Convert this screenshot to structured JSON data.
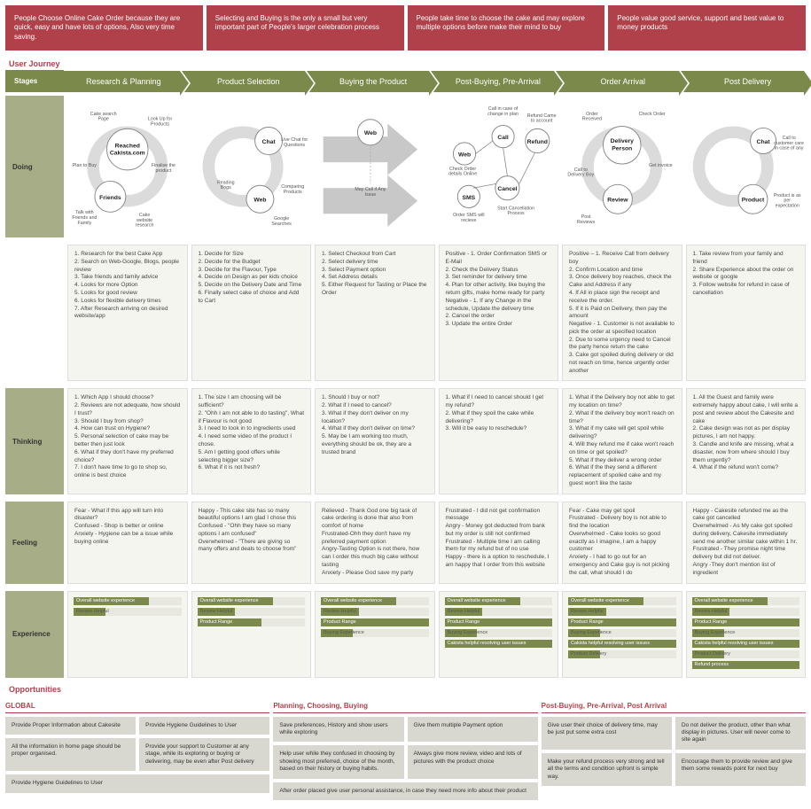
{
  "colors": {
    "banner_bg": "#b0414a",
    "stage_bg": "#7b8a4a",
    "label_bg": "#a7ad87",
    "cell_bg": "#f5f5f0",
    "opp_card_bg": "#d8d8d0"
  },
  "banners": [
    "People Choose Online Cake Order because they are quick, easy and have lots of options, Also very time saving.",
    "Selecting and Buying is the only a small but very important part of People's larger celebration process",
    "People take time to choose the cake and may explore multiple options before make their mind to buy",
    "People value good service, support and best value to money products"
  ],
  "journey_title": "User Journey",
  "stages_label": "Stages",
  "stages": [
    "Research & Planning",
    "Product Selection",
    "Buying the Product",
    "Post-Buying, Pre-Arrival",
    "Order Arrival",
    "Post Delivery"
  ],
  "rows": {
    "doing": {
      "label": "Doing",
      "col1": {
        "center": "Reached Cakista.com",
        "nodes": [
          "Friends"
        ],
        "labels": [
          "Cake search Page",
          "Look Up for Products",
          "Plan to Buy",
          "Finalise the product",
          "Talk with Friends and Family",
          "Cake website research"
        ]
      },
      "col2": {
        "nodes": [
          "Chat",
          "Web"
        ],
        "labels": [
          "Live Chat for Questions",
          "Reading Bogs",
          "Comparing Products",
          "Google Searches"
        ]
      },
      "col3": {
        "nodes": [
          "Web"
        ],
        "labels": [
          "May Call if Any Issue"
        ]
      },
      "col4": {
        "nodes": [
          "Web",
          "SMS",
          "Call",
          "Cancel",
          "Refund"
        ],
        "labels": [
          "Call in case of change in plan",
          "Refund Came to account",
          "Check Order details Online",
          "Order SMS will recieve",
          "Start Cancellation Process"
        ]
      },
      "col5": {
        "center": "Delivery Person",
        "nodes": [
          "Review"
        ],
        "labels": [
          "Order Received",
          "Check Order",
          "Call to Delivery Boy",
          "Get invoice",
          "Post Reviews"
        ]
      },
      "col6": {
        "nodes": [
          "Chat",
          "Product"
        ],
        "labels": [
          "Call to customer care in case of any",
          "Product is as per expectation"
        ]
      }
    },
    "doing_list": [
      "1. Research for the best Cake App\n2. Search on Web-Google, Blogs, people review\n3. Take friends and family advice\n4. Looks for more Option\n5. Looks for good review\n6. Looks for flexible delivery times\n7. After Research arriving on desired website/app",
      "1. Decide for Size\n2. Decide for the Budget\n3. Decide for the Flavour, Type\n4. Decide on Design as per kids choice\n5. Decide on the Delivery Date and Time\n6. Finally select cake of choice and Add to Cart",
      "1. Select Checkout from Cart\n2. Select delivery time\n3. Select Payment option\n4. Set Address details\n5. Either Request for Tasting or Place the Order",
      "Positive - 1. Order Confirmation SMS or E-Mail\n2. Check the Delivery Status\n3. Set reminder for delivery time\n4. Plan for other activity, like buying the return gifts, make home ready for party\nNegative - 1. If any Change in the schedule, Update the delivery time\n2. Cancel the order\n3. Update the entire Order",
      "Positive – 1. Receive Call from delivery boy\n2. Confirm Location and time\n3. Once delivery boy reaches, check the Cake and Address if any\n4. If All in place sign the receipt and receive the order.\n5. If it is Paid on Delivery, then pay the amount\nNegative - 1. Customer is not available to pick the order at specified location\n2. Due to some urgency need to Cancel the party hence return the cake\n3. Cake got spoiled during delivery or did not reach on time, hence urgently order another",
      "1. Take review from your family and friend\n2. Share Experience about the order on website or google\n3. Follow website for refund in case of cancellation"
    ],
    "thinking": {
      "label": "Thinking",
      "cells": [
        "1. Which App I should choose?\n2. Reviews are not adequate, how should I trust?\n3. Should I buy from shop?\n4. How can  trust on Hygiene?\n5. Personal selection of cake may be better then just look\n6. What if they don't have my preferred choice?\n7. I don't have time to go to shop so, online is best choice",
        "1. The size I am choosing will be sufficient?\n2. \"Ohh I am not able to do tasting\", What if Flavour is not good\n3. I need to look in to ingredients used\n4. I need some video of the product I chose.\n5. Am I getting good offers while selecting bigger size?\n6. What if it is not fresh?",
        "1. Should I buy or not?\n2. What if I need to cancel?\n3. What if they don't deliver on my location?\n4. What if they don't deliver on time?\n5. May be I am working too much, everything should be ok, they are a trusted brand",
        "1. What if I need to cancel should I get my refund?\n2. What if they spoil the cake while delivering?\n3. Will it be easy to reschedule?",
        "1. What if the Delivery boy not able to get my location on time?\n2. What if the delivery boy won't reach on time?\n3. What if my cake will get spoil while delivering?\n4. Will they refund me if cake won't reach on time or get spoiled?\n5. What if they deliver a wrong order\n6. What if the they send a different replacement of spoiled cake and my guest won't like the taste",
        "1. All the Guest and family were extremely happy about cake, I will write a post and review about the Cakesite and cake\n2. Cake design was not as per display pictures, I am not happy.\n3. Candle and knife are missing, what a disaster, now from where should I buy them urgently?\n4. What if the refund won't come?"
      ]
    },
    "feeling": {
      "label": "Feeling",
      "cells": [
        "Fear - What if this app will turn into disaster?\nConfused - Shop is better or online\nAnxiety - Hygiene can be a issue while buying online",
        "Happy - This cake site has so many beautiful options I am glad I chose this\nConfused - \"Ohh they have so many options I am confused\"\nOverwhelmed - \"There are giving so many offers and deals to choose from\"",
        "Relieved - Thank God one big task of cake ordering is done that also from comfort of home\nFrustrated-Ohh they don't have my preferred payment option\nAngry-Tasting Option is not there, how can I order this much big cake without tasting\nAnxiety - Please God save my party",
        "Frustrated - I did not get confirmation message\nAngry - Money got deducted from bank but my order is still not confirmed\nFrustrated - Multiple time I am calling them for my refund but of no use\nHappy - there is a option to reschedule, I am happy that I order from this website",
        "Fear - Cake may get spoil\nFrustrated - Delivery boy is not able to find the location\nOverwhelmed - Cake looks so good exactly as I imagine, I am a happy customer\nAnxiety - I had to go out for an emergency and Cake guy is not picking the call, what should I do",
        "Happy - Cakesite refunded me as the cake got cancelled\nOverwhelmed - As My cake got spoiled during delivery, Cakesite immediately send me another similar cake within 1 hr.\nFrustrated - They promise night time delivery but did not deliver.\nAngry -They don't mention list of ingredient"
      ]
    },
    "experience": {
      "label": "Experience",
      "cols": [
        [
          {
            "label": "Overall website experience",
            "pct": 70
          },
          {
            "label": "Review Helpful",
            "pct": 30
          }
        ],
        [
          {
            "label": "Overall website experience",
            "pct": 70
          },
          {
            "label": "Review Helpful",
            "pct": 35
          },
          {
            "label": "Product Range",
            "pct": 60
          }
        ],
        [
          {
            "label": "Overall website experience",
            "pct": 70
          },
          {
            "label": "Review Helpful",
            "pct": 35
          },
          {
            "label": "Product Range",
            "pct": 100
          },
          {
            "label": "Buying Experience",
            "pct": 30
          }
        ],
        [
          {
            "label": "Overall website experience",
            "pct": 70
          },
          {
            "label": "Review Helpful",
            "pct": 35
          },
          {
            "label": "Product Range",
            "pct": 100
          },
          {
            "label": "Buying Experience",
            "pct": 30
          },
          {
            "label": "Cakista helpful resolving user issues",
            "pct": 100
          }
        ],
        [
          {
            "label": "Overall website experience",
            "pct": 70
          },
          {
            "label": "Review Helpful",
            "pct": 35
          },
          {
            "label": "Product Range",
            "pct": 100
          },
          {
            "label": "Buying Experience",
            "pct": 30
          },
          {
            "label": "Cakista helpful resolving user issues",
            "pct": 100
          },
          {
            "label": "Product Delivery",
            "pct": 30
          }
        ],
        [
          {
            "label": "Overall website experience",
            "pct": 70
          },
          {
            "label": "Review Helpful",
            "pct": 35
          },
          {
            "label": "Product Range",
            "pct": 100
          },
          {
            "label": "Buying Experience",
            "pct": 30
          },
          {
            "label": "Cakista helpful resolving user issues",
            "pct": 100
          },
          {
            "label": "Product Delivery",
            "pct": 30
          },
          {
            "label": "Refund process",
            "pct": 100
          }
        ]
      ]
    }
  },
  "opportunities": {
    "title": "Opportunities",
    "groups": [
      {
        "title": "GLOBAL",
        "cards": [
          "Provide Proper Information about Cakesite",
          "Provide Hygiene Guidelines to User",
          "All the information in home page should be proper organised.",
          "Provide your support to Customer at any stage, while its exploring or buying or delivering, may be even after Post delivery",
          "Provide Hygiene Guidelines to User"
        ]
      },
      {
        "title": "Planning, Choosing, Buying",
        "cards": [
          "Save preferences, History and show users while exploring",
          "Give them multiple Payment option",
          "Help user while they confused in choosing by showing most preferred, choice of the month, based on their history or buying habits.",
          "Always give more review, video and lots of pictures with the product choice",
          "After order placed give user personal assistance, in case they need more info about their product"
        ]
      },
      {
        "title": "Post-Buying, Pre-Arrival, Post Arrival",
        "cards": [
          "Give user their choice of delivery time, may be just put some extra cost",
          "Do not deliver the product, other than what display in pictures. User will never come to site again",
          "Make your refund process very strong and tell all the terms and condition upfront is simple way.",
          "Encourage them to provide review and give them some rewards point for next buy"
        ]
      }
    ]
  }
}
